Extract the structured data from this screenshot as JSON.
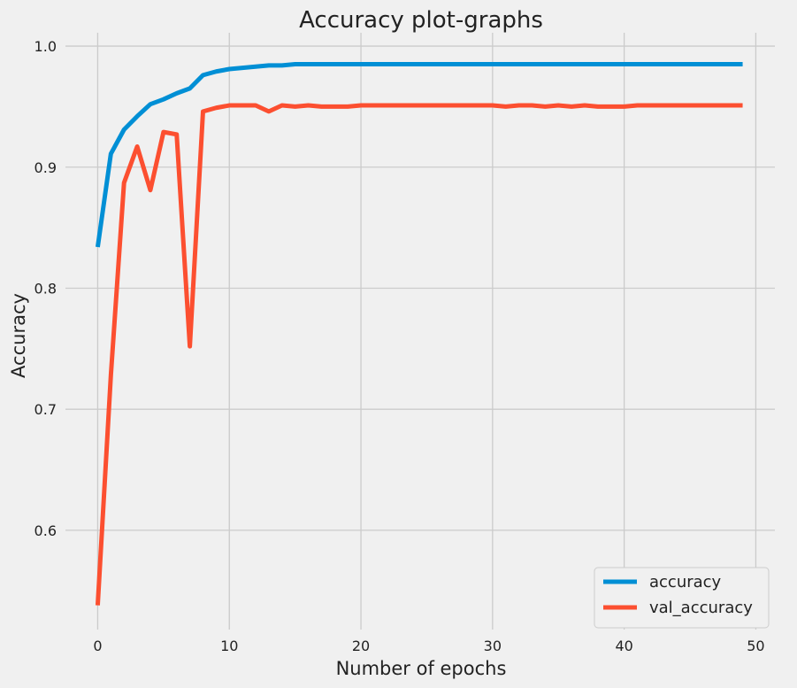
{
  "chart_data": {
    "type": "line",
    "title": "Accuracy plot-graphs",
    "xlabel": "Number of epochs",
    "ylabel": "Accuracy",
    "xlim": [
      -2.45,
      51.45
    ],
    "ylim": [
      0.518,
      1.011
    ],
    "xticks": [
      0,
      10,
      20,
      30,
      40,
      50
    ],
    "xtick_labels": [
      "0",
      "10",
      "20",
      "30",
      "40",
      "50"
    ],
    "yticks": [
      0.6,
      0.7,
      0.8,
      0.9,
      1.0
    ],
    "ytick_labels": [
      "0.6",
      "0.7",
      "0.8",
      "0.9",
      "1.0"
    ],
    "grid": true,
    "legend_position": "bottom-right",
    "x": [
      0,
      1,
      2,
      3,
      4,
      5,
      6,
      7,
      8,
      9,
      10,
      11,
      12,
      13,
      14,
      15,
      16,
      17,
      18,
      19,
      20,
      21,
      22,
      23,
      24,
      25,
      26,
      27,
      28,
      29,
      30,
      31,
      32,
      33,
      34,
      35,
      36,
      37,
      38,
      39,
      40,
      41,
      42,
      43,
      44,
      45,
      46,
      47,
      48,
      49
    ],
    "series": [
      {
        "name": "accuracy",
        "color": "#008fd5",
        "values": [
          0.834,
          0.911,
          0.931,
          0.942,
          0.952,
          0.956,
          0.961,
          0.965,
          0.976,
          0.979,
          0.981,
          0.982,
          0.983,
          0.984,
          0.984,
          0.985,
          0.985,
          0.985,
          0.985,
          0.985,
          0.985,
          0.985,
          0.985,
          0.985,
          0.985,
          0.985,
          0.985,
          0.985,
          0.985,
          0.985,
          0.985,
          0.985,
          0.985,
          0.985,
          0.985,
          0.985,
          0.985,
          0.985,
          0.985,
          0.985,
          0.985,
          0.985,
          0.985,
          0.985,
          0.985,
          0.985,
          0.985,
          0.985,
          0.985,
          0.985
        ]
      },
      {
        "name": "val_accuracy",
        "color": "#fc4f30",
        "values": [
          0.538,
          0.728,
          0.887,
          0.917,
          0.881,
          0.929,
          0.927,
          0.752,
          0.946,
          0.949,
          0.951,
          0.951,
          0.951,
          0.946,
          0.951,
          0.95,
          0.951,
          0.95,
          0.95,
          0.95,
          0.951,
          0.951,
          0.951,
          0.951,
          0.951,
          0.951,
          0.951,
          0.951,
          0.951,
          0.951,
          0.951,
          0.95,
          0.951,
          0.951,
          0.95,
          0.951,
          0.95,
          0.951,
          0.95,
          0.95,
          0.95,
          0.951,
          0.951,
          0.951,
          0.951,
          0.951,
          0.951,
          0.951,
          0.951,
          0.951
        ]
      }
    ]
  }
}
